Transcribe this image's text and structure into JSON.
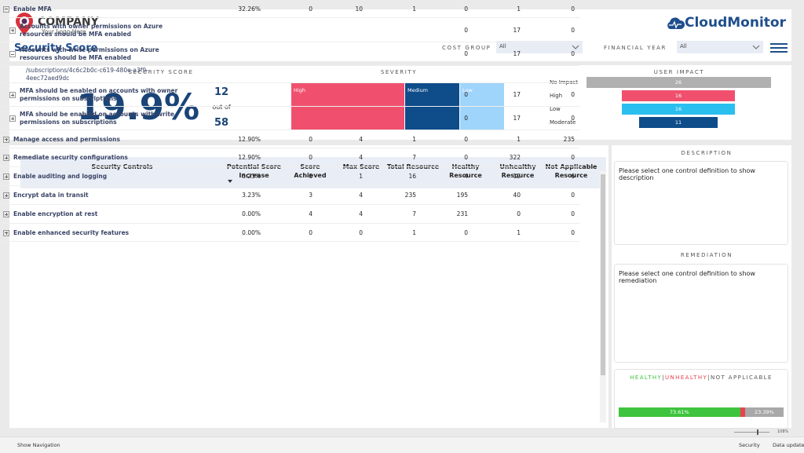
{
  "header": {
    "company": "COMPANY",
    "tagline": "Your Logo Here",
    "page_title": "Security Score",
    "brand": "CloudMonitor"
  },
  "filters": [
    {
      "label": "COST GROUP",
      "value": "All"
    },
    {
      "label": "FINANCIAL YEAR",
      "value": "All"
    }
  ],
  "security_score": {
    "title": "SECURITY SCORE",
    "value": "19.9%",
    "achieved": 12,
    "out_of": "out of",
    "max": 58
  },
  "severity": {
    "title": "SEVERITY",
    "blocks": [
      {
        "label": "High",
        "color": "#f0506e"
      },
      {
        "label": "Medium",
        "color": "#0e4c8a"
      },
      {
        "label": "Low",
        "color": "#9fd4fb"
      }
    ]
  },
  "user_impact": {
    "title": "USER IMPACT",
    "rows": [
      {
        "label": "No Impact",
        "value": 26,
        "color": "#b0b0b0"
      },
      {
        "label": "High",
        "value": 16,
        "color": "#f0506e"
      },
      {
        "label": "Low",
        "value": 16,
        "color": "#2bbff0"
      },
      {
        "label": "Moderate",
        "value": 11,
        "color": "#0e4c8a"
      }
    ]
  },
  "table": {
    "columns": [
      "Security Controls",
      "Potential Score Increase",
      "Score Achieved",
      "Max Score",
      "Total Resource",
      "Healthy Resource",
      "Unhealthy Resource",
      "Not Applicable Resource"
    ],
    "rows": [
      {
        "level": 0,
        "expanded": true,
        "cells": [
          "Enable MFA",
          "32.26%",
          0,
          10,
          1,
          0,
          1,
          0
        ]
      },
      {
        "level": 1,
        "expanded": false,
        "cells": [
          "Accounts with owner permissions on Azure resources should be MFA enabled",
          null,
          null,
          null,
          null,
          0,
          17,
          0
        ]
      },
      {
        "level": 1,
        "expanded": true,
        "cells": [
          "Accounts with write permissions on Azure resources should be MFA enabled",
          null,
          null,
          null,
          null,
          0,
          17,
          0
        ]
      },
      {
        "level": 2,
        "cells": [
          "/subscriptions/4c6c2b0c-c619-480e-a3f9-4eec72aed9dc",
          null,
          null,
          null,
          null,
          null,
          null,
          null
        ]
      },
      {
        "level": 1,
        "expanded": false,
        "cells": [
          "MFA should be enabled on accounts with owner permissions on subscriptions",
          null,
          null,
          null,
          null,
          0,
          17,
          0
        ]
      },
      {
        "level": 1,
        "expanded": false,
        "cells": [
          "MFA should be enabled on accounts with write permissions on subscriptions",
          null,
          null,
          null,
          null,
          0,
          17,
          0
        ]
      },
      {
        "level": 0,
        "expanded": false,
        "cells": [
          "Manage access and permissions",
          "12.90%",
          0,
          4,
          1,
          0,
          1,
          235
        ]
      },
      {
        "level": 0,
        "expanded": false,
        "cells": [
          "Remediate security configurations",
          "12.90%",
          0,
          4,
          7,
          0,
          322,
          0
        ]
      },
      {
        "level": 0,
        "expanded": false,
        "cells": [
          "Enable auditing and logging",
          "3.23%",
          0,
          1,
          16,
          4,
          12,
          6
        ]
      },
      {
        "level": 0,
        "expanded": false,
        "cells": [
          "Encrypt data in transit",
          "3.23%",
          3,
          4,
          235,
          195,
          40,
          0
        ]
      },
      {
        "level": 0,
        "expanded": false,
        "cells": [
          "Enable encryption at rest",
          "0.00%",
          4,
          4,
          7,
          231,
          0,
          0
        ]
      },
      {
        "level": 0,
        "expanded": false,
        "cells": [
          "Enable enhanced security features",
          "0.00%",
          0,
          0,
          1,
          0,
          1,
          0
        ]
      }
    ]
  },
  "description": {
    "title": "DESCRIPTION",
    "text": "Please select one control definition to show description"
  },
  "remediation": {
    "title": "REMEDIATION",
    "text": "Please select one control definition to show remediation"
  },
  "health": {
    "legend": [
      "HEALTHY",
      "|",
      "UNHEALTHY",
      "|",
      "NOT APPLICABLE"
    ],
    "legend_colors": [
      "#3ec43e",
      "#555555",
      "#e8404e",
      "#555555",
      "#555555"
    ],
    "values": [
      73.61,
      3,
      23.39
    ],
    "value_labels": [
      "73.61%",
      null,
      "23.39%"
    ],
    "colors": [
      "#3ec43e",
      "#e8404e",
      "#a8a8a8"
    ]
  },
  "footer": {
    "navigation": "Show Navigation",
    "zoom": "108%",
    "page": "Security",
    "status": "Data update..."
  }
}
